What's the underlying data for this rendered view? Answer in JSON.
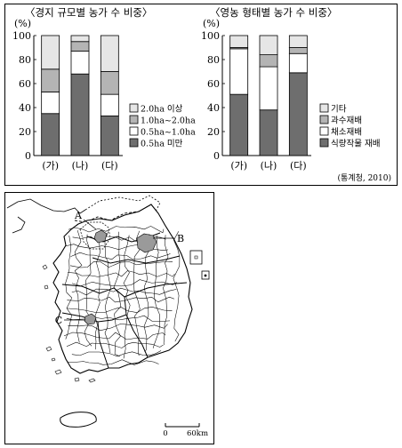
{
  "chart_data": [
    {
      "type": "bar",
      "stacked": true,
      "title": "〈경지 규모별 농가 수 비중〉",
      "ylabel": "(%)",
      "ylim": [
        0,
        100
      ],
      "yticks": [
        "0",
        "20",
        "40",
        "60",
        "80",
        "100"
      ],
      "categories": [
        "(가)",
        "(나)",
        "(다)"
      ],
      "series": [
        {
          "name": "0.5ha 미만",
          "values": [
            35,
            68,
            33
          ],
          "color": "#6e6e6e"
        },
        {
          "name": "0.5ha~1.0ha",
          "values": [
            18,
            19,
            18
          ],
          "color": "#ffffff"
        },
        {
          "name": "1.0ha~2.0ha",
          "values": [
            19,
            8,
            19
          ],
          "color": "#b4b4b4"
        },
        {
          "name": "2.0ha 이상",
          "values": [
            28,
            5,
            30
          ],
          "color": "#e6e6e6"
        }
      ],
      "legend_position": "right"
    },
    {
      "type": "bar",
      "stacked": true,
      "title": "〈영농 형태별 농가 수 비중〉",
      "ylabel": "(%)",
      "ylim": [
        0,
        100
      ],
      "yticks": [
        "0",
        "20",
        "40",
        "60",
        "80",
        "100"
      ],
      "categories": [
        "(가)",
        "(나)",
        "(다)"
      ],
      "series": [
        {
          "name": "식량작물 재배",
          "values": [
            51,
            38,
            69
          ],
          "color": "#6e6e6e"
        },
        {
          "name": "채소재배",
          "values": [
            38,
            36,
            16
          ],
          "color": "#ffffff"
        },
        {
          "name": "과수재배",
          "values": [
            1,
            10,
            5
          ],
          "color": "#b4b4b4"
        },
        {
          "name": "기타",
          "values": [
            10,
            16,
            10
          ],
          "color": "#e6e6e6"
        }
      ],
      "legend_position": "right"
    }
  ],
  "source": "(통계청, 2010)",
  "map": {
    "labels": {
      "a": "A",
      "b": "B",
      "c": "C"
    },
    "scale_zero": "0",
    "scale_max": "60km"
  }
}
